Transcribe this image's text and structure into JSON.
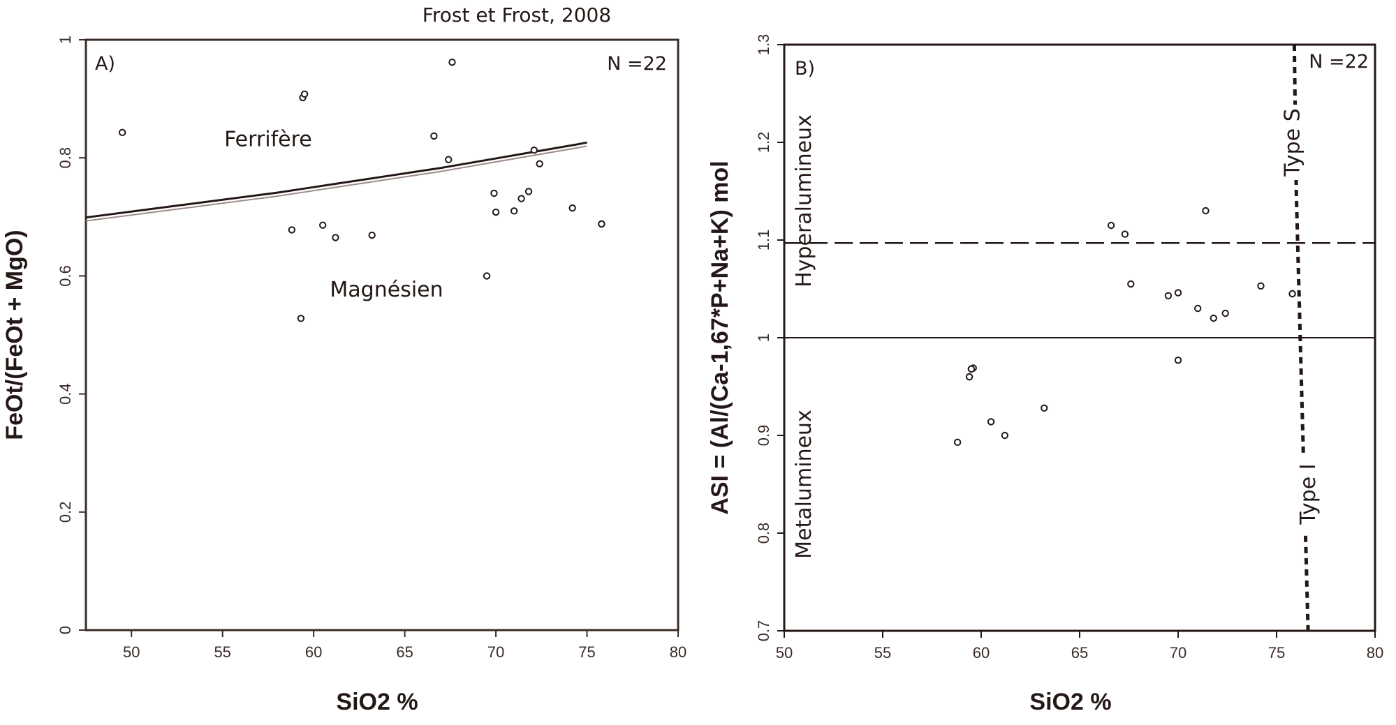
{
  "figure_title": "Frost et Frost, 2008",
  "colors": {
    "ink": "#231815",
    "frame": "#3a2b26",
    "boundary_shadow": "#9c8c86"
  },
  "chart_data": [
    {
      "type": "scatter",
      "panel_label": "A)",
      "n_label": "N =22",
      "xlabel": "SiO2 %",
      "ylabel": "FeOt/(FeOt + MgO)",
      "xlim": [
        47.5,
        80
      ],
      "ylim": [
        0,
        1
      ],
      "xticks": [
        50,
        55,
        60,
        65,
        70,
        75,
        80
      ],
      "xtick_labels": [
        "50",
        "55",
        "60",
        "65",
        "70",
        "75",
        "80"
      ],
      "yticks": [
        0,
        0.2,
        0.4,
        0.6,
        0.8,
        1
      ],
      "ytick_labels": [
        "0",
        "0.2",
        "0.4",
        "0.6",
        "0.8",
        "1"
      ],
      "grid": false,
      "boundary_line": {
        "x": [
          47.5,
          49,
          50.5,
          52,
          53.5,
          55,
          56.5,
          58,
          59.5,
          61,
          62.5,
          64,
          65.5,
          67,
          68.5,
          70,
          71.5,
          73,
          74.5,
          75
        ],
        "y": [
          0.699,
          0.705,
          0.711,
          0.717,
          0.723,
          0.729,
          0.735,
          0.741,
          0.748,
          0.755,
          0.762,
          0.769,
          0.776,
          0.783,
          0.791,
          0.799,
          0.807,
          0.815,
          0.823,
          0.826
        ]
      },
      "region_labels": [
        {
          "text": "Ferrifère",
          "x": 57.5,
          "y": 0.82
        },
        {
          "text": "Magnésien",
          "x": 64,
          "y": 0.565
        }
      ],
      "points": {
        "x": [
          49.5,
          58.8,
          59.3,
          59.4,
          59.5,
          60.5,
          61.2,
          63.2,
          66.6,
          67.4,
          67.6,
          69.5,
          69.9,
          70.0,
          71.0,
          71.4,
          71.8,
          72.1,
          72.4,
          74.2,
          75.8,
          75.8
        ],
        "y": [
          0.843,
          0.678,
          0.528,
          0.902,
          0.908,
          0.686,
          0.665,
          0.669,
          0.837,
          0.797,
          0.962,
          0.6,
          0.74,
          0.708,
          0.71,
          0.731,
          0.743,
          0.813,
          0.79,
          0.715,
          0.688,
          0.688
        ]
      }
    },
    {
      "type": "scatter",
      "panel_label": "B)",
      "n_label": "N =22",
      "xlabel": "SiO2 %",
      "ylabel": "ASI = (Al/(Ca-1,67*P+Na+K) mol",
      "xlim": [
        50,
        80
      ],
      "ylim": [
        0.7,
        1.3
      ],
      "xticks": [
        50,
        55,
        60,
        65,
        70,
        75,
        80
      ],
      "xtick_labels": [
        "50",
        "55",
        "60",
        "65",
        "70",
        "75",
        "80"
      ],
      "yticks": [
        0.7,
        0.8,
        0.9,
        1.0,
        1.1,
        1.2,
        1.3
      ],
      "ytick_labels": [
        "0.7",
        "0.8",
        "0.9",
        "1",
        "1.1",
        "1.2",
        "1.3"
      ],
      "grid": false,
      "reference_lines": [
        {
          "y": 1.0,
          "style": "solid"
        },
        {
          "y": 1.097,
          "style": "dashed"
        }
      ],
      "type_boundary": {
        "x": [
          75.9,
          76.0,
          76.2,
          76.4,
          76.6
        ],
        "y": [
          1.3,
          1.15,
          1.0,
          0.85,
          0.7
        ]
      },
      "region_labels": [
        {
          "text": "Hyperalumineux",
          "x": 51,
          "y": 1.14,
          "rotation": -90
        },
        {
          "text": "Metalumineux",
          "x": 51,
          "y": 0.85,
          "rotation": -90
        },
        {
          "text": "Type S",
          "x": 75.8,
          "y": 1.2,
          "rotation": -90
        },
        {
          "text": "Type I",
          "x": 76.6,
          "y": 0.84,
          "rotation": -90
        }
      ],
      "points": {
        "x": [
          58.8,
          59.4,
          59.5,
          59.6,
          60.5,
          61.2,
          63.2,
          66.6,
          67.3,
          67.6,
          69.5,
          70.0,
          70.0,
          71.0,
          71.4,
          71.8,
          72.4,
          74.2,
          75.8,
          75.8,
          59.4,
          59.5
        ],
        "y": [
          0.893,
          0.96,
          0.968,
          0.969,
          0.914,
          0.9,
          0.928,
          1.115,
          1.106,
          1.055,
          1.043,
          1.046,
          0.977,
          1.03,
          1.13,
          1.02,
          1.025,
          1.053,
          1.045,
          1.045,
          0.96,
          0.968
        ]
      }
    }
  ]
}
